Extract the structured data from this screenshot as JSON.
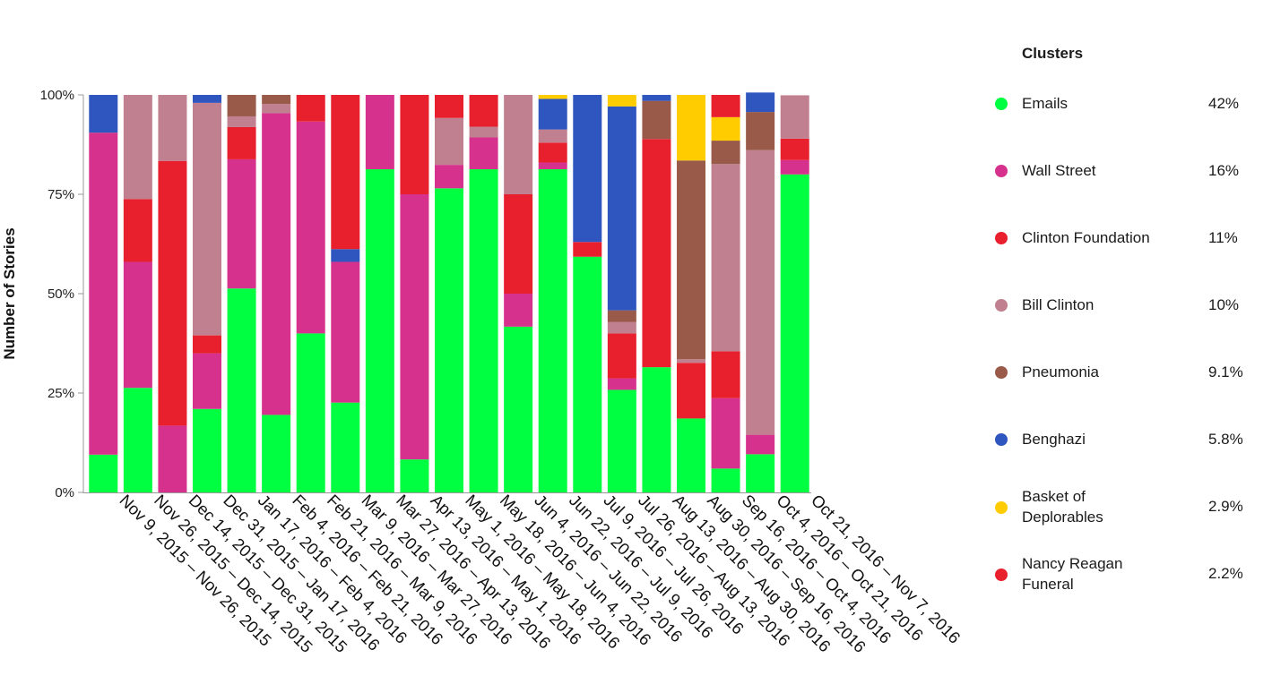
{
  "chart_data": {
    "type": "bar",
    "stacked": true,
    "ylabel": "Number of Stories",
    "ytick_labels": [
      "0%",
      "25%",
      "50%",
      "75%",
      "100%"
    ],
    "ylim": [
      0,
      100
    ],
    "categories": [
      "Nov 9, 2015 – Nov 26, 2015",
      "Nov 26, 2015 – Dec 14, 2015",
      "Dec 14, 2015 – Dec 31, 2015",
      "Dec 31, 2015 – Jan 17, 2016",
      "Jan 17, 2016 – Feb 4, 2016",
      "Feb 4, 2016 – Feb 21, 2016",
      "Feb 21, 2016 – Mar 9, 2016",
      "Mar 9, 2016 – Mar 27, 2016",
      "Mar 27, 2016 – Apr 13, 2016",
      "Apr 13, 2016 – May 1, 2016",
      "May 1, 2016 – May 18, 2016",
      "May 18, 2016 – Jun 4, 2016",
      "Jun 4, 2016 – Jun 22, 2016",
      "Jun 22, 2016 – Jul 9, 2016",
      "Jul 9, 2016 – Jul 26, 2016",
      "Jul 26, 2016 – Aug 13, 2016",
      "Aug 13, 2016 – Aug 30, 2016",
      "Aug 30, 2016 – Sep 16, 2016",
      "Sep 16, 2016 – Oct 4, 2016",
      "Oct 4, 2016 – Oct 21, 2016",
      "Oct 21, 2016 – Nov 7, 2016"
    ],
    "legend_title": "Clusters",
    "legend_placement": "right",
    "series": [
      {
        "name": "Emails",
        "share": "42%",
        "color": "#00ff40",
        "values": [
          9.5,
          26.3,
          0,
          21.0,
          51.3,
          19.5,
          40.0,
          22.6,
          81.3,
          8.3,
          76.5,
          81.3,
          41.7,
          81.3,
          59.3,
          25.8,
          31.5,
          18.6,
          6.0,
          9.6,
          80.0
        ]
      },
      {
        "name": "Wall Street",
        "share": "16%",
        "color": "#d6318c",
        "values": [
          81.0,
          31.7,
          16.8,
          14.0,
          32.5,
          75.9,
          53.3,
          35.4,
          18.7,
          66.7,
          5.9,
          8.0,
          8.3,
          1.7,
          0,
          2.9,
          0,
          0,
          17.7,
          4.9,
          3.6
        ]
      },
      {
        "name": "Clinton Foundation",
        "share": "11%",
        "color": "#e8202e",
        "values": [
          0,
          15.8,
          66.6,
          4.5,
          8.1,
          0,
          0,
          0,
          0,
          25.0,
          0,
          0,
          25.0,
          5.0,
          3.7,
          11.3,
          57.4,
          14.0,
          11.8,
          0,
          5.4
        ]
      },
      {
        "name": "Bill Clinton",
        "share": "10%",
        "color": "#c08090",
        "values": [
          0,
          26.2,
          16.6,
          58.5,
          2.7,
          2.3,
          0,
          0,
          0,
          0,
          11.8,
          2.7,
          25.0,
          3.3,
          0,
          2.9,
          0,
          0.9,
          47.1,
          71.6,
          10.9
        ]
      },
      {
        "name": "Pneumonia",
        "share": "9.1%",
        "color": "#9a5a4a",
        "values": [
          0,
          0,
          0,
          0,
          5.4,
          2.3,
          0,
          0,
          0,
          0,
          0,
          0,
          0,
          0,
          0,
          2.9,
          9.6,
          50.0,
          5.9,
          9.6,
          0
        ]
      },
      {
        "name": "Benghazi",
        "share": "5.8%",
        "color": "#2e56be",
        "values": [
          9.5,
          0,
          0,
          2.0,
          0,
          0,
          0,
          3.2,
          0,
          0,
          0,
          0,
          0,
          7.7,
          37.0,
          51.3,
          1.5,
          0,
          0,
          4.9,
          0
        ]
      },
      {
        "name": "Basket of\nDeplorables",
        "share": "2.9%",
        "color": "#ffcc00",
        "values": [
          0,
          0,
          0,
          0,
          0,
          0,
          0,
          0,
          0,
          0,
          0,
          0,
          0,
          1.0,
          0,
          2.9,
          0,
          16.5,
          5.9,
          0,
          0
        ]
      },
      {
        "name": "Nancy Reagan\nFuneral",
        "share": "2.2%",
        "color": "#e8202e",
        "values": [
          0,
          0,
          0,
          0,
          0,
          0,
          6.7,
          38.8,
          0,
          0,
          5.8,
          8.0,
          0,
          0,
          0,
          0,
          0,
          0,
          5.6,
          0,
          0
        ]
      }
    ]
  }
}
